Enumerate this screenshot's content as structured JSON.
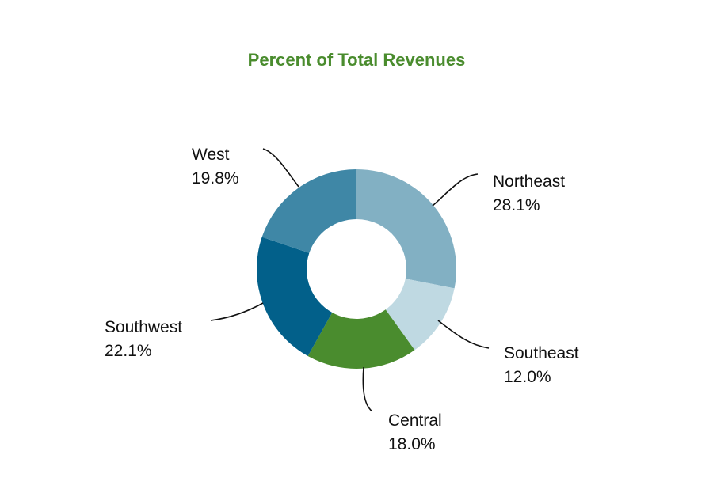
{
  "chart_data": {
    "type": "pie",
    "variant": "donut",
    "title": "Percent of Total Revenues",
    "title_color": "#4a8c2e",
    "slices": [
      {
        "label": "Northeast",
        "value": 28.1,
        "value_label": "28.1%",
        "color": "#82b0c3"
      },
      {
        "label": "Southeast",
        "value": 12.0,
        "value_label": "12.0%",
        "color": "#bfd9e2"
      },
      {
        "label": "Central",
        "value": 18.0,
        "value_label": "18.0%",
        "color": "#4a8c2e"
      },
      {
        "label": "Southwest",
        "value": 22.1,
        "value_label": "22.1%",
        "color": "#02608a"
      },
      {
        "label": "West",
        "value": 19.8,
        "value_label": "19.8%",
        "color": "#3f87a6"
      }
    ],
    "start_angle": "top",
    "direction": "clockwise",
    "legend": "none"
  }
}
